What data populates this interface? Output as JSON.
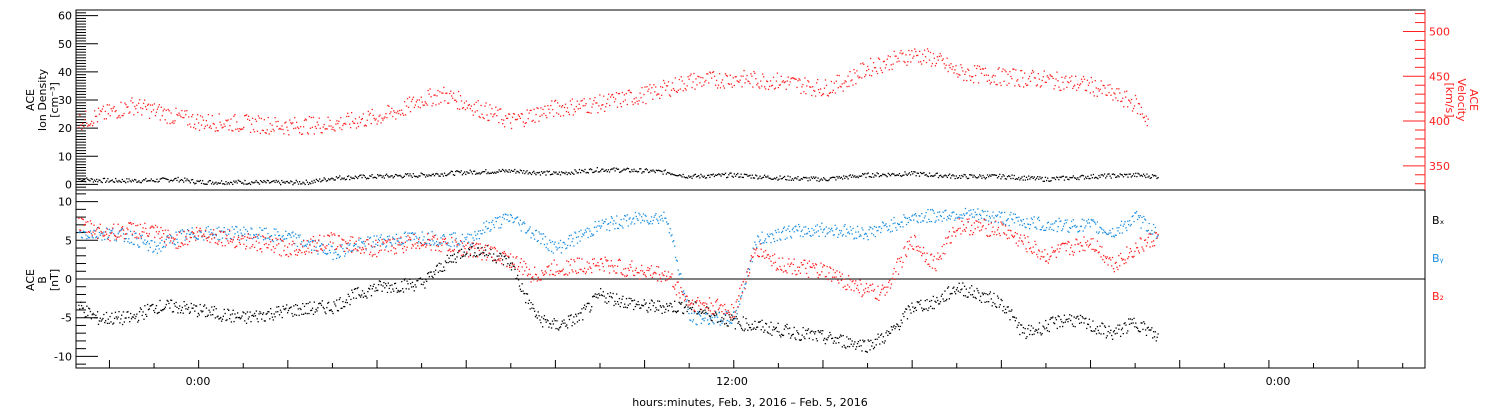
{
  "figure": {
    "x_axis_label": "hours:minutes, Feb.  3, 2016 – Feb.  5, 2016",
    "x_tick_labels": [
      "0:00",
      "12:00",
      "0:00"
    ]
  },
  "colors": {
    "black": "#000000",
    "red": "#ff2020",
    "blue": "#1e8fe0"
  },
  "chart_data": [
    {
      "type": "scatter",
      "title": "",
      "ylabel_left": [
        "ACE",
        "Ion Density",
        "[cm⁻³]"
      ],
      "ylabel_right": [
        "ACE",
        "Velocity",
        "[km/s]"
      ],
      "x_unit": "hours from 0:00 Feb. 3, 2016",
      "xlim": [
        -2.75,
        27.5
      ],
      "ylim": [
        -2,
        62
      ],
      "y_ticks": [
        0,
        10,
        20,
        30,
        40,
        50,
        60
      ],
      "ylim_right": [
        323,
        524
      ],
      "y_ticks_right": [
        350,
        400,
        450,
        500
      ],
      "series": [
        {
          "key": "density",
          "axis": "left",
          "color": "black",
          "points": [
            [
              -2.7,
              2.0
            ],
            [
              -2.0,
              1.5
            ],
            [
              -1.0,
              1.6
            ],
            [
              -0.5,
              2.0
            ],
            [
              0.0,
              1.0
            ],
            [
              1.0,
              1.0
            ],
            [
              2.0,
              0.8
            ],
            [
              2.5,
              1.0
            ],
            [
              3.0,
              2.5
            ],
            [
              4.0,
              3.0
            ],
            [
              5.0,
              3.5
            ],
            [
              6.0,
              4.5
            ],
            [
              7.0,
              5.0
            ],
            [
              8.0,
              4.0
            ],
            [
              9.0,
              5.5
            ],
            [
              10.0,
              5.0
            ],
            [
              10.5,
              4.5
            ],
            [
              11.0,
              3.0
            ],
            [
              12.0,
              3.5
            ],
            [
              13.0,
              2.5
            ],
            [
              14.0,
              2.0
            ],
            [
              15.0,
              3.5
            ],
            [
              16.0,
              4.0
            ],
            [
              17.0,
              3.0
            ],
            [
              18.0,
              3.0
            ],
            [
              19.0,
              2.0
            ],
            [
              20.0,
              3.0
            ],
            [
              21.0,
              3.5
            ],
            [
              21.5,
              3.0
            ]
          ]
        },
        {
          "key": "velocity",
          "axis": "right",
          "color": "red",
          "points": [
            [
              -2.7,
              400
            ],
            [
              -2.0,
              410
            ],
            [
              -1.5,
              418
            ],
            [
              -1.0,
              412
            ],
            [
              -0.5,
              405
            ],
            [
              0.0,
              400
            ],
            [
              1.0,
              398
            ],
            [
              2.0,
              395
            ],
            [
              3.0,
              397
            ],
            [
              4.0,
              405
            ],
            [
              4.5,
              412
            ],
            [
              5.0,
              425
            ],
            [
              5.5,
              430
            ],
            [
              6.0,
              420
            ],
            [
              7.0,
              400
            ],
            [
              7.5,
              408
            ],
            [
              8.0,
              415
            ],
            [
              9.0,
              420
            ],
            [
              10.0,
              430
            ],
            [
              11.0,
              445
            ],
            [
              12.0,
              448
            ],
            [
              13.0,
              445
            ],
            [
              14.0,
              437
            ],
            [
              14.5,
              445
            ],
            [
              15.0,
              460
            ],
            [
              16.0,
              475
            ],
            [
              16.5,
              470
            ],
            [
              17.0,
              455
            ],
            [
              18.0,
              450
            ],
            [
              19.0,
              447
            ],
            [
              20.0,
              440
            ],
            [
              20.5,
              430
            ],
            [
              21.0,
              420
            ],
            [
              21.3,
              400
            ]
          ]
        }
      ]
    },
    {
      "type": "scatter",
      "title": "",
      "ylabel_left": [
        "ACE",
        "B",
        "[nT]"
      ],
      "x_unit": "hours from 0:00 Feb. 3, 2016",
      "xlim": [
        -2.75,
        27.5
      ],
      "ylim": [
        -11.5,
        11.5
      ],
      "y_ticks": [
        -10,
        -5,
        0,
        5,
        10
      ],
      "legend_position": "right",
      "series": [
        {
          "key": "bx",
          "name": "Bₓ",
          "color": "black",
          "points": [
            [
              -2.7,
              -3.5
            ],
            [
              -2.3,
              -5.0
            ],
            [
              -1.5,
              -5.0
            ],
            [
              -1.0,
              -3.5
            ],
            [
              -0.5,
              -3.5
            ],
            [
              0.0,
              -4.0
            ],
            [
              1.0,
              -5.0
            ],
            [
              2.0,
              -4.0
            ],
            [
              3.0,
              -3.5
            ],
            [
              3.5,
              -2.0
            ],
            [
              4.0,
              -1.0
            ],
            [
              5.0,
              -0.5
            ],
            [
              5.5,
              2.0
            ],
            [
              6.0,
              4.0
            ],
            [
              6.5,
              3.5
            ],
            [
              7.0,
              2.0
            ],
            [
              7.3,
              -2.0
            ],
            [
              7.6,
              -5.0
            ],
            [
              8.0,
              -6.0
            ],
            [
              8.5,
              -5.0
            ],
            [
              9.0,
              -2.0
            ],
            [
              10.0,
              -3.5
            ],
            [
              11.0,
              -3.5
            ],
            [
              12.0,
              -5.5
            ],
            [
              13.0,
              -6.5
            ],
            [
              14.0,
              -7.5
            ],
            [
              15.0,
              -8.5
            ],
            [
              15.5,
              -7.0
            ],
            [
              16.0,
              -3.5
            ],
            [
              16.5,
              -3.0
            ],
            [
              17.0,
              -1.0
            ],
            [
              17.5,
              -2.0
            ],
            [
              18.0,
              -3.0
            ],
            [
              18.5,
              -7.0
            ],
            [
              19.0,
              -6.0
            ],
            [
              19.5,
              -5.0
            ],
            [
              20.0,
              -6.0
            ],
            [
              20.5,
              -7.0
            ],
            [
              21.0,
              -5.5
            ],
            [
              21.5,
              -7.5
            ]
          ]
        },
        {
          "key": "by",
          "name": "Bᵧ",
          "color": "blue",
          "points": [
            [
              -2.7,
              6.0
            ],
            [
              -2.0,
              6.0
            ],
            [
              -1.5,
              5.5
            ],
            [
              -1.0,
              4.0
            ],
            [
              -0.5,
              5.5
            ],
            [
              0.0,
              6.0
            ],
            [
              1.0,
              6.0
            ],
            [
              2.0,
              5.5
            ],
            [
              3.0,
              3.5
            ],
            [
              4.0,
              5.0
            ],
            [
              5.0,
              5.5
            ],
            [
              6.0,
              5.0
            ],
            [
              6.5,
              7.0
            ],
            [
              7.0,
              8.0
            ],
            [
              7.5,
              6.0
            ],
            [
              8.0,
              4.0
            ],
            [
              9.0,
              7.0
            ],
            [
              10.0,
              8.0
            ],
            [
              10.5,
              8.0
            ],
            [
              11.0,
              -5.0
            ],
            [
              12.0,
              -5.0
            ],
            [
              12.5,
              5.0
            ],
            [
              13.0,
              6.0
            ],
            [
              14.0,
              6.5
            ],
            [
              15.0,
              6.0
            ],
            [
              16.0,
              8.0
            ],
            [
              17.0,
              8.5
            ],
            [
              18.0,
              8.0
            ],
            [
              19.0,
              7.0
            ],
            [
              20.0,
              7.0
            ],
            [
              20.5,
              6.0
            ],
            [
              21.0,
              8.0
            ],
            [
              21.5,
              6.0
            ]
          ]
        },
        {
          "key": "bz",
          "name": "B₂",
          "color": "red",
          "points": [
            [
              -2.7,
              7.0
            ],
            [
              -2.0,
              6.0
            ],
            [
              -1.5,
              6.5
            ],
            [
              -1.0,
              6.0
            ],
            [
              -0.5,
              5.0
            ],
            [
              0.0,
              6.0
            ],
            [
              1.0,
              5.0
            ],
            [
              2.0,
              4.0
            ],
            [
              3.0,
              5.0
            ],
            [
              4.0,
              4.0
            ],
            [
              5.0,
              5.0
            ],
            [
              6.0,
              4.0
            ],
            [
              6.5,
              3.5
            ],
            [
              7.0,
              2.5
            ],
            [
              7.5,
              0.5
            ],
            [
              8.0,
              1.5
            ],
            [
              9.0,
              2.0
            ],
            [
              10.0,
              1.0
            ],
            [
              10.5,
              0.5
            ],
            [
              11.0,
              -3.0
            ],
            [
              12.0,
              -4.0
            ],
            [
              12.5,
              4.0
            ],
            [
              13.0,
              2.0
            ],
            [
              14.0,
              1.0
            ],
            [
              15.0,
              -1.5
            ],
            [
              15.3,
              -2.0
            ],
            [
              16.0,
              5.0
            ],
            [
              16.5,
              2.0
            ],
            [
              17.0,
              7.0
            ],
            [
              18.0,
              6.5
            ],
            [
              19.0,
              3.0
            ],
            [
              20.0,
              5.0
            ],
            [
              20.5,
              2.0
            ],
            [
              21.0,
              4.0
            ],
            [
              21.5,
              5.5
            ]
          ]
        }
      ]
    }
  ]
}
